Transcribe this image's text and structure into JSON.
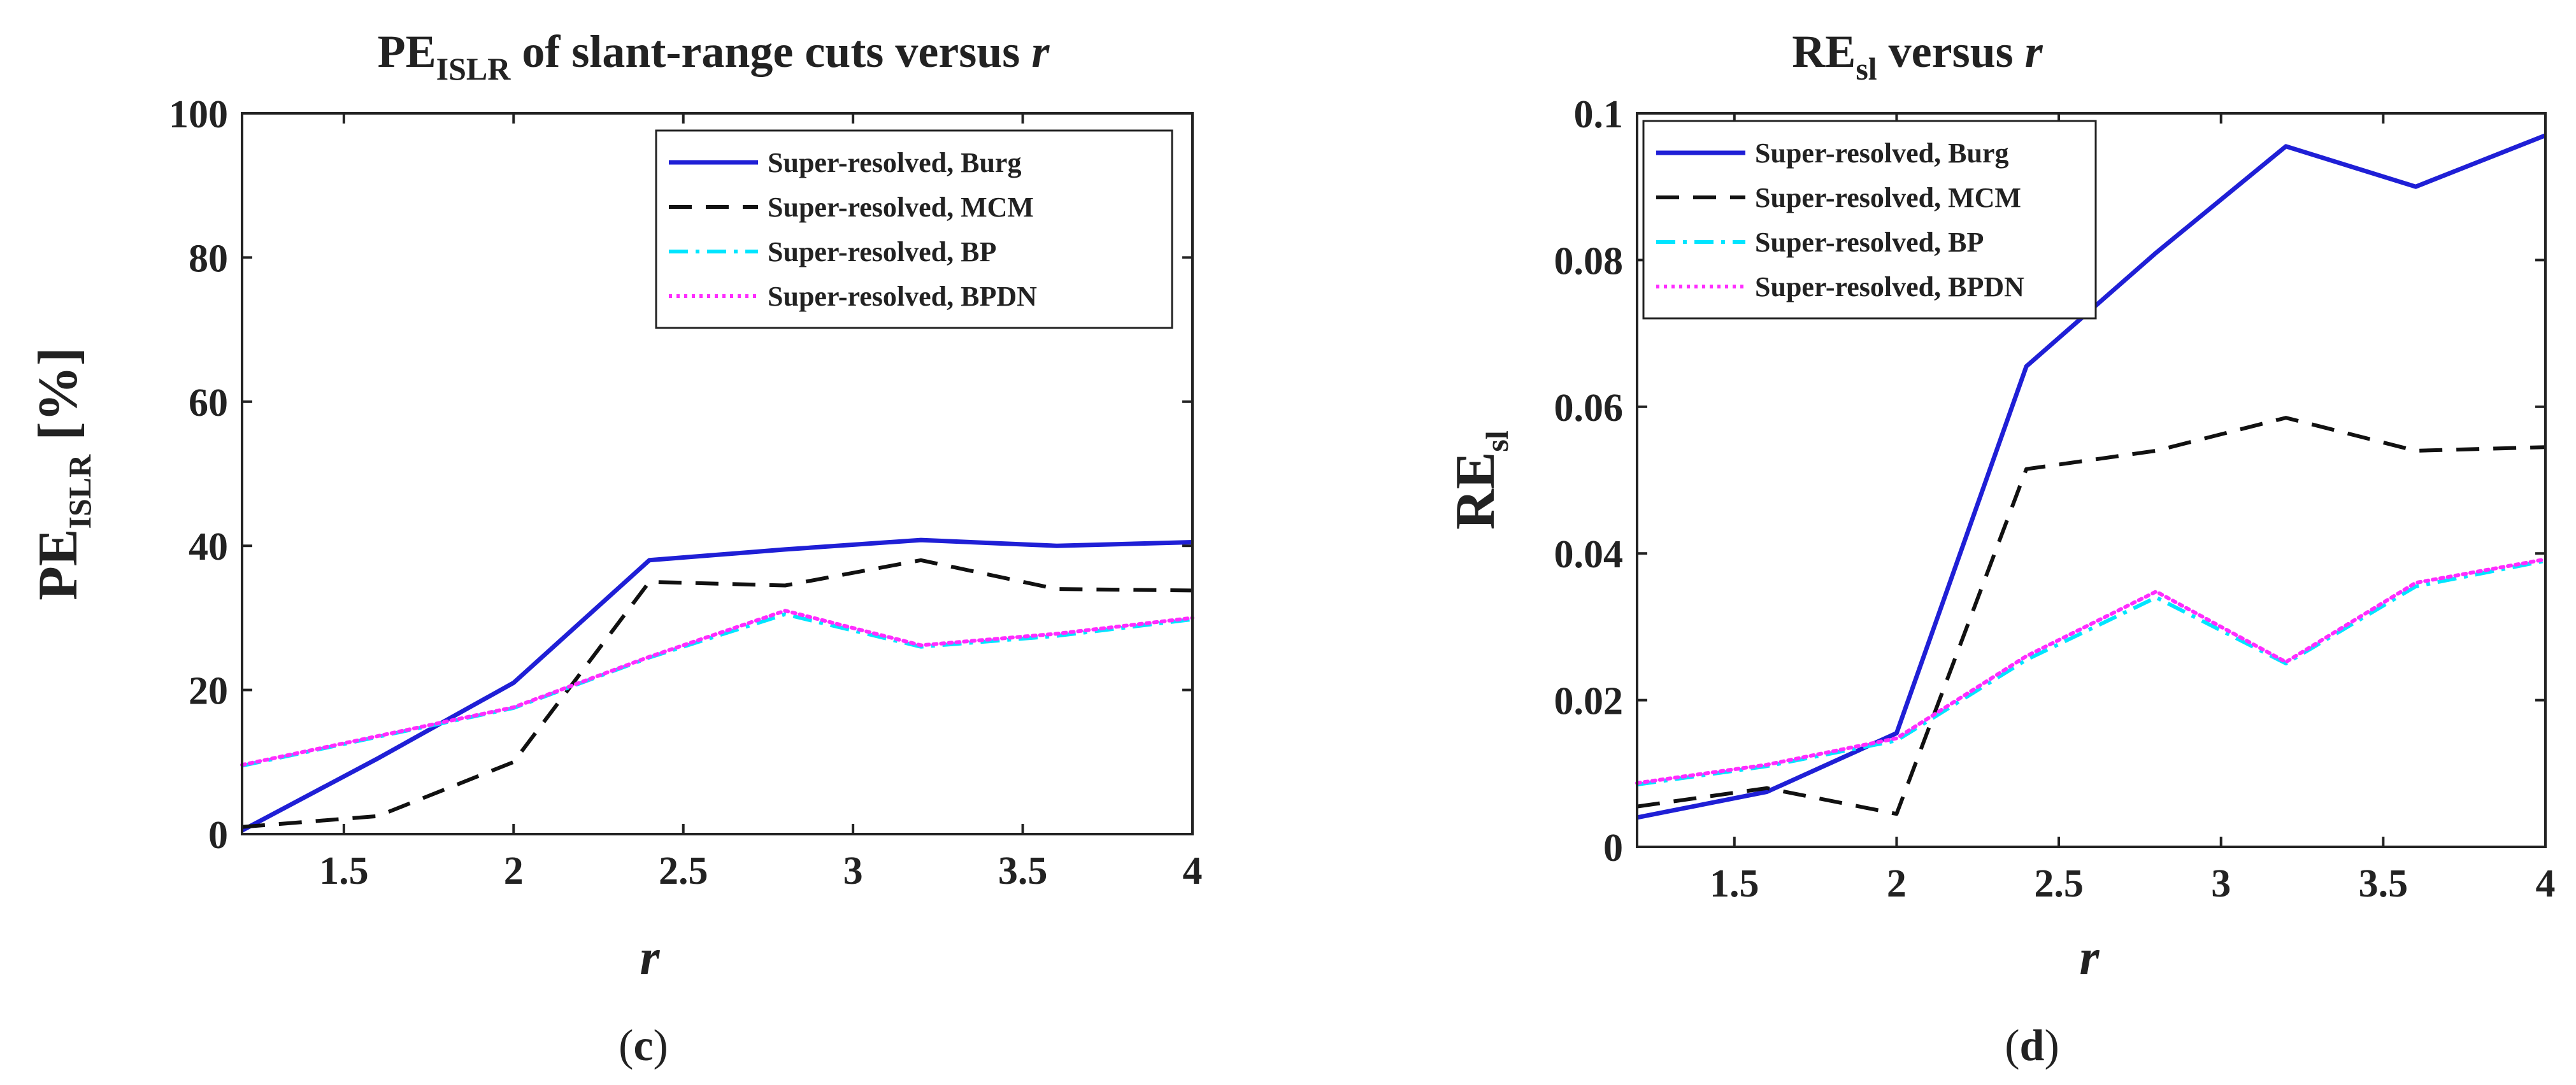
{
  "chart_data": [
    {
      "type": "line",
      "title": "PE",
      "title_sub": "ISLR",
      "title_rest": " of slant-range cuts versus ",
      "title_var": "r",
      "ylabel": "PE",
      "ylabel_sub": "ISLR",
      "ylabel_rest": " [%]",
      "xlabel": "r",
      "panel_label": "(c)",
      "panel_letter": "c",
      "xlim": [
        1.2,
        4
      ],
      "ylim": [
        0,
        100
      ],
      "xticks": [
        "1.5",
        "2",
        "2.5",
        "3",
        "3.5",
        "4"
      ],
      "xtick_values": [
        1.5,
        2,
        2.5,
        3,
        3.5,
        4
      ],
      "yticks": [
        "0",
        "20",
        "40",
        "60",
        "80",
        "100"
      ],
      "ytick_values": [
        0,
        20,
        40,
        60,
        80,
        100
      ],
      "legend_position": "top-right",
      "x": [
        1.2,
        1.6,
        2.0,
        2.4,
        2.8,
        3.2,
        3.6,
        4.0
      ],
      "series": [
        {
          "name": "Super-resolved, Burg",
          "color": "#1f1fd6",
          "style": "solid",
          "values": [
            0.5,
            10.5,
            21,
            38,
            39.5,
            40.8,
            40,
            40.5
          ]
        },
        {
          "name": "Super-resolved, MCM",
          "color": "#111111",
          "style": "dashed",
          "values": [
            1,
            2.5,
            10,
            35,
            34.5,
            38,
            34,
            33.8
          ]
        },
        {
          "name": "Super-resolved, BP",
          "color": "#00e5ff",
          "style": "dashdot",
          "values": [
            9.5,
            13.5,
            17.5,
            24.5,
            30.5,
            26,
            27.5,
            29.8
          ]
        },
        {
          "name": "Super-resolved, BPDN",
          "color": "#ff2cff",
          "style": "dotted",
          "values": [
            9.6,
            13.6,
            17.6,
            24.6,
            31,
            26.2,
            27.8,
            30
          ]
        }
      ]
    },
    {
      "type": "line",
      "title": "RE",
      "title_sub": "sl",
      "title_rest": " versus ",
      "title_var": "r",
      "ylabel": "RE",
      "ylabel_sub": "sl",
      "ylabel_rest": "",
      "xlabel": "r",
      "panel_label": "(d)",
      "panel_letter": "d",
      "xlim": [
        1.2,
        4
      ],
      "ylim": [
        0,
        0.1
      ],
      "xticks": [
        "1.5",
        "2",
        "2.5",
        "3",
        "3.5",
        "4"
      ],
      "xtick_values": [
        1.5,
        2,
        2.5,
        3,
        3.5,
        4
      ],
      "yticks": [
        "0",
        "0.02",
        "0.04",
        "0.06",
        "0.08",
        "0.1"
      ],
      "ytick_values": [
        0,
        0.02,
        0.04,
        0.06,
        0.08,
        0.1
      ],
      "legend_position": "top-left",
      "x": [
        1.2,
        1.6,
        2.0,
        2.4,
        2.8,
        3.2,
        3.6,
        4.0
      ],
      "series": [
        {
          "name": "Super-resolved, Burg",
          "color": "#1f1fd6",
          "style": "solid",
          "values": [
            0.004,
            0.0075,
            0.0155,
            0.0655,
            0.081,
            0.0955,
            0.09,
            0.097
          ]
        },
        {
          "name": "Super-resolved, MCM",
          "color": "#111111",
          "style": "dashed",
          "values": [
            0.0055,
            0.008,
            0.0045,
            0.0515,
            0.054,
            0.0585,
            0.054,
            0.0545
          ]
        },
        {
          "name": "Super-resolved, BP",
          "color": "#00e5ff",
          "style": "dashdot",
          "values": [
            0.0085,
            0.011,
            0.0145,
            0.0255,
            0.034,
            0.025,
            0.0355,
            0.039
          ]
        },
        {
          "name": "Super-resolved, BPDN",
          "color": "#ff2cff",
          "style": "dotted",
          "values": [
            0.0087,
            0.0112,
            0.0148,
            0.026,
            0.0348,
            0.0252,
            0.036,
            0.0392
          ]
        }
      ]
    }
  ]
}
